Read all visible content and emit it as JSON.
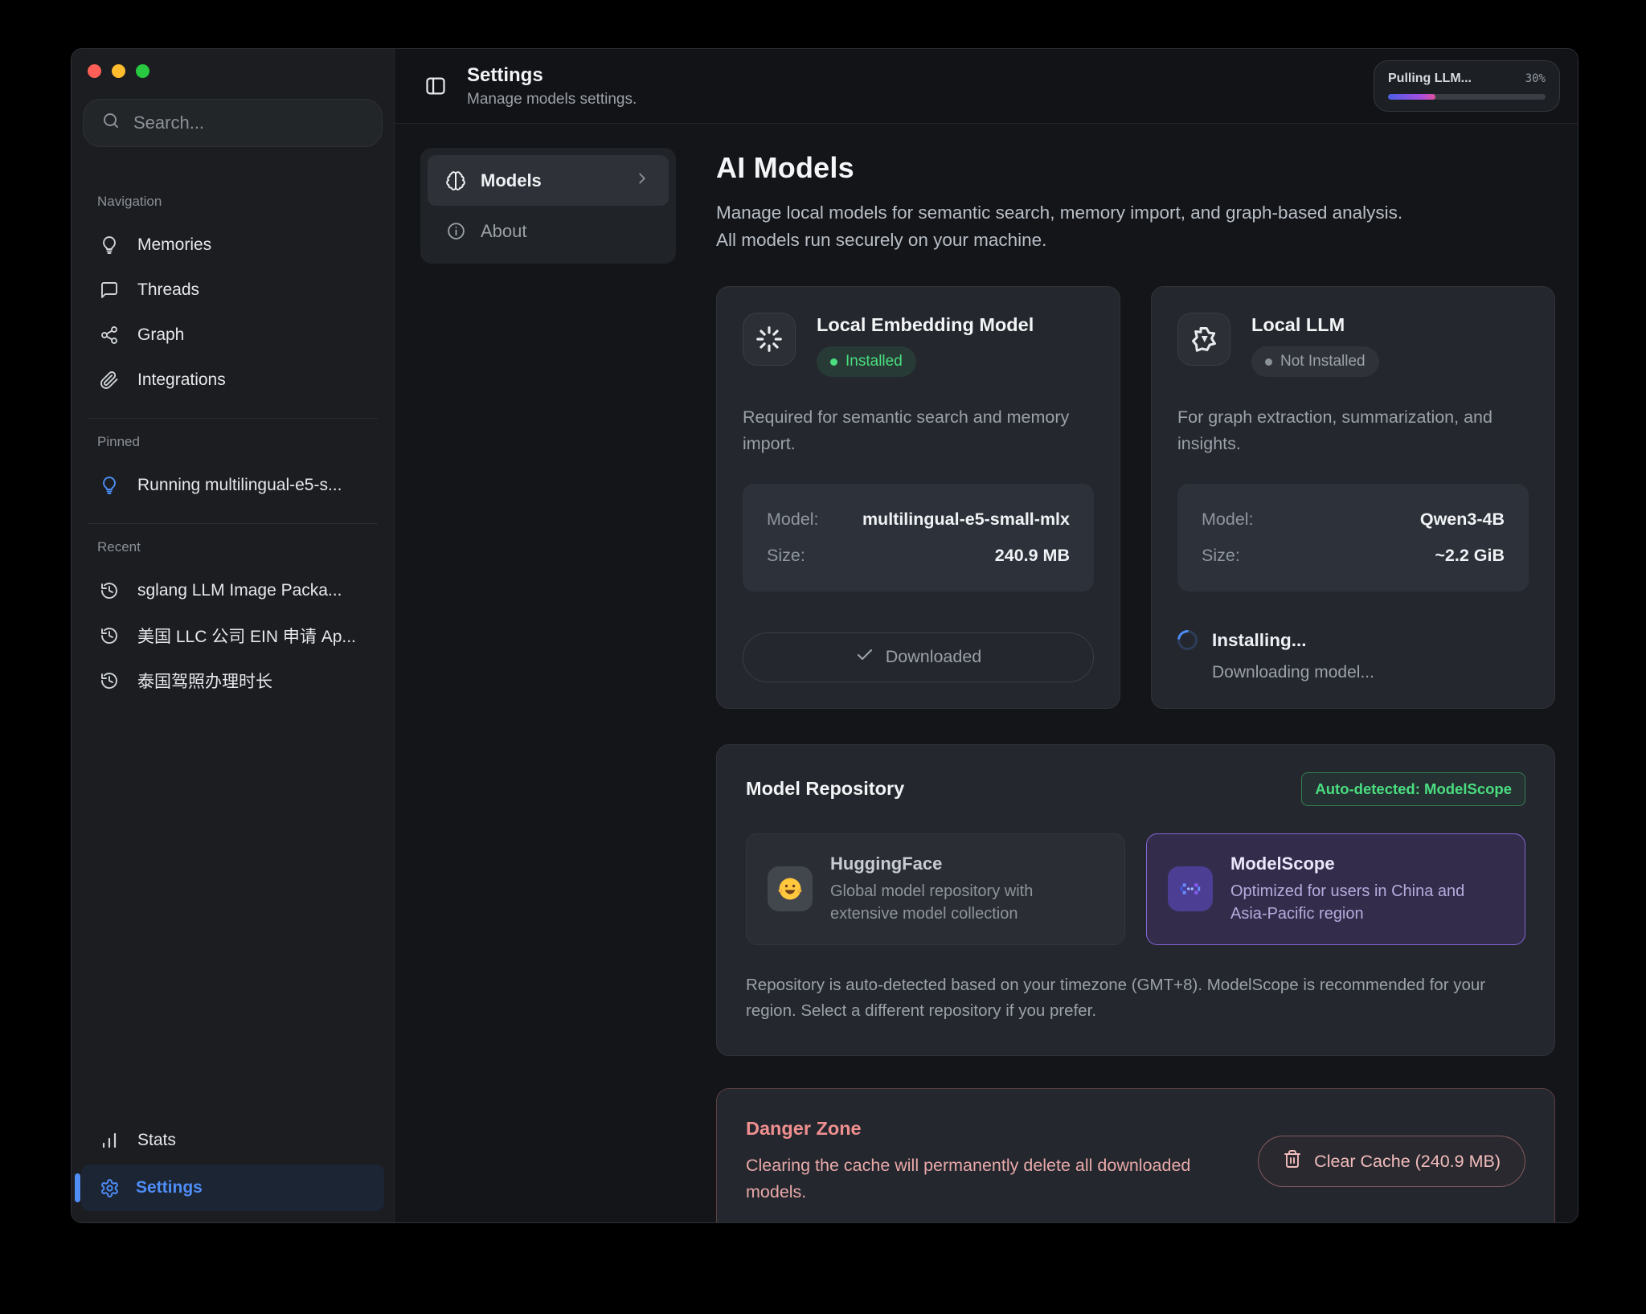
{
  "header": {
    "title": "Settings",
    "subtitle": "Manage models settings.",
    "progress": {
      "label": "Pulling LLM...",
      "percent_text": "30%",
      "value": 30
    }
  },
  "sidebar": {
    "search_placeholder": "Search...",
    "nav_label": "Navigation",
    "nav_items": [
      {
        "label": "Memories"
      },
      {
        "label": "Threads"
      },
      {
        "label": "Graph"
      },
      {
        "label": "Integrations"
      }
    ],
    "pinned_label": "Pinned",
    "pinned_item": "Running multilingual-e5-s...",
    "recent_label": "Recent",
    "recent_items": [
      {
        "label": "sglang LLM Image Packa..."
      },
      {
        "label": "美国 LLC 公司 EIN 申请 Ap..."
      },
      {
        "label": "泰国驾照办理时长"
      }
    ],
    "stats_label": "Stats",
    "settings_label": "Settings"
  },
  "subnav": {
    "models_label": "Models",
    "about_label": "About"
  },
  "page": {
    "title": "AI Models",
    "description_line1": "Manage local models for semantic search, memory import, and graph-based analysis.",
    "description_line2": "All models run securely on your machine.",
    "embedding_card": {
      "title": "Local Embedding Model",
      "badge": "Installed",
      "description": "Required for semantic search and memory import.",
      "model_label": "Model:",
      "model_value": "multilingual-e5-small-mlx",
      "size_label": "Size:",
      "size_value": "240.9 MB",
      "button_label": "Downloaded"
    },
    "llm_card": {
      "title": "Local LLM",
      "badge": "Not Installed",
      "description": "For graph extraction, summarization, and insights.",
      "model_label": "Model:",
      "model_value": "Qwen3-4B",
      "size_label": "Size:",
      "size_value": "~2.2 GiB",
      "status_title": "Installing...",
      "status_subtitle": "Downloading model..."
    },
    "repository": {
      "title": "Model Repository",
      "badge": "Auto-detected: ModelScope",
      "options": [
        {
          "name": "HuggingFace",
          "description": "Global model repository with extensive model collection"
        },
        {
          "name": "ModelScope",
          "description": "Optimized for users in China and Asia-Pacific region"
        }
      ],
      "footnote": "Repository is auto-detected based on your timezone (GMT+8). ModelScope is recommended for your region. Select a different repository if you prefer."
    },
    "danger": {
      "title": "Danger Zone",
      "description": "Clearing the cache will permanently delete all downloaded models.",
      "button_label": "Clear Cache (240.9 MB)"
    }
  },
  "colors": {
    "accent_blue": "#4f8df7",
    "success_green": "#4ade80",
    "danger_pink": "#ef8f8f",
    "progress_gradient_start": "#4a5fe8",
    "progress_gradient_end": "#e0529e"
  }
}
